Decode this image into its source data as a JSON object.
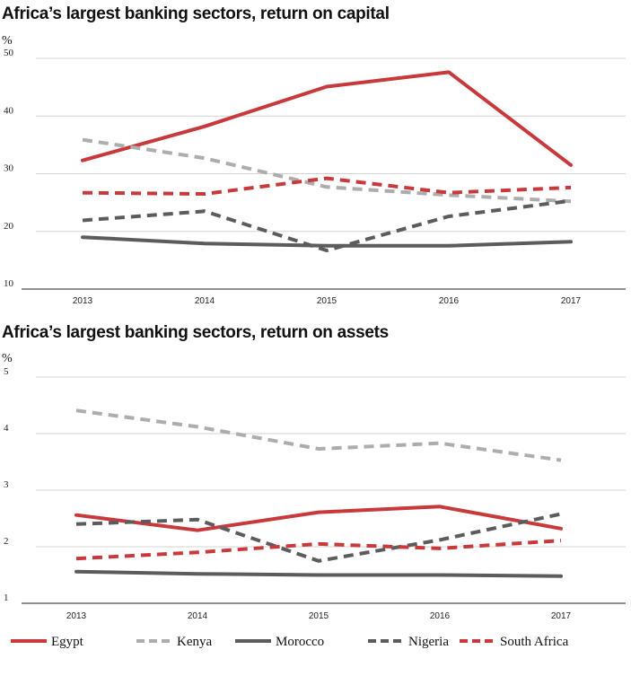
{
  "colors": {
    "Egypt": "#c8393b",
    "Kenya": "#adadad",
    "Morocco": "#5c5c5e",
    "Nigeria": "#5c5c5e",
    "South Africa": "#c8393b"
  },
  "legend": [
    {
      "name": "Egypt",
      "dashed": false
    },
    {
      "name": "Kenya",
      "dashed": true
    },
    {
      "name": "Morocco",
      "dashed": false
    },
    {
      "name": "Nigeria",
      "dashed": true
    },
    {
      "name": "South Africa",
      "dashed": true
    }
  ],
  "chart_data": [
    {
      "type": "line",
      "title": "Africa’s largest banking sectors, return on capital",
      "unit": "%",
      "x": [
        "2013",
        "2014",
        "2015",
        "2016",
        "2017"
      ],
      "ylim": [
        10,
        50
      ],
      "yticks": [
        10,
        20,
        30,
        40,
        50
      ],
      "grid": true,
      "series": [
        {
          "name": "Egypt",
          "values": [
            32.3,
            38.2,
            45.1,
            47.6,
            31.5
          ]
        },
        {
          "name": "Kenya",
          "values": [
            35.9,
            32.7,
            27.7,
            26.3,
            25.2
          ]
        },
        {
          "name": "Morocco",
          "values": [
            19.0,
            17.9,
            17.5,
            17.5,
            18.2
          ]
        },
        {
          "name": "Nigeria",
          "values": [
            21.9,
            23.5,
            16.7,
            22.6,
            25.3
          ]
        },
        {
          "name": "South Africa",
          "values": [
            26.7,
            26.5,
            29.2,
            26.7,
            27.6
          ]
        }
      ]
    },
    {
      "type": "line",
      "title": "Africa’s largest banking sectors, return on assets",
      "unit": "%",
      "x": [
        "2013",
        "2014",
        "2015",
        "2016",
        "2017"
      ],
      "ylim": [
        1,
        5
      ],
      "yticks": [
        1,
        2,
        3,
        4,
        5
      ],
      "grid": true,
      "series": [
        {
          "name": "Egypt",
          "values": [
            2.56,
            2.29,
            2.61,
            2.71,
            2.32
          ]
        },
        {
          "name": "Kenya",
          "values": [
            4.41,
            4.12,
            3.73,
            3.83,
            3.53
          ]
        },
        {
          "name": "Morocco",
          "values": [
            1.56,
            1.52,
            1.5,
            1.5,
            1.48
          ]
        },
        {
          "name": "Nigeria",
          "values": [
            2.4,
            2.48,
            1.75,
            2.12,
            2.58
          ]
        },
        {
          "name": "South Africa",
          "values": [
            1.79,
            1.9,
            2.05,
            1.97,
            2.11
          ]
        }
      ]
    }
  ]
}
